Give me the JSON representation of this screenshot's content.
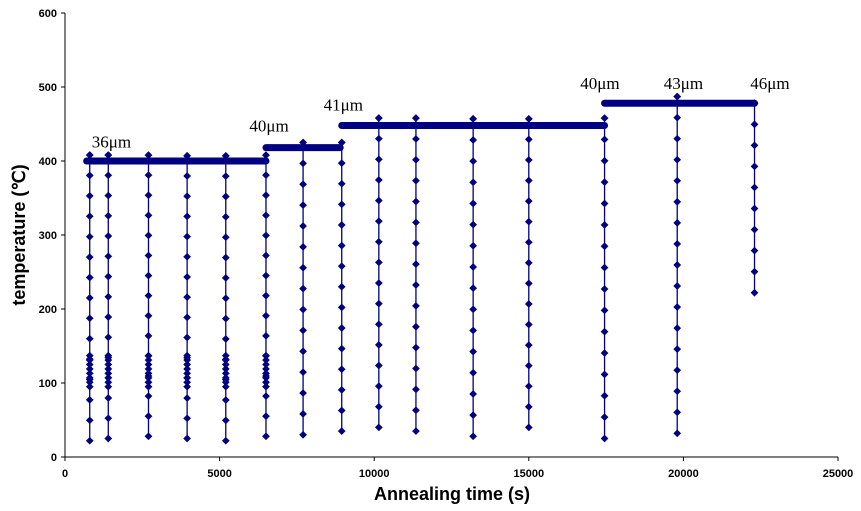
{
  "chart_data": {
    "type": "scatter",
    "title": "",
    "xlabel": "Annealing time (s)",
    "ylabel": "temperature (℃)",
    "xlim": [
      0,
      25000
    ],
    "ylim": [
      0,
      600
    ],
    "x_ticks": [
      0,
      5000,
      10000,
      15000,
      20000,
      25000
    ],
    "y_ticks": [
      0,
      100,
      200,
      300,
      400,
      500,
      600
    ],
    "grid": false,
    "legend": "none",
    "colors": {
      "series": "#000080",
      "axis": "#000000"
    },
    "series": [
      {
        "marker": "diamond",
        "line": true,
        "segments": [
          {
            "plateau": {
              "x_start": 700,
              "x_end": 6500,
              "y": 400
            },
            "cycles": [
              {
                "x": 800,
                "bottom": 22,
                "top": 408
              },
              {
                "x": 1400,
                "bottom": 25,
                "top": 408
              },
              {
                "x": 2700,
                "bottom": 28,
                "top": 408
              },
              {
                "x": 3950,
                "bottom": 25,
                "top": 407
              },
              {
                "x": 5200,
                "bottom": 22,
                "top": 407
              },
              {
                "x": 6500,
                "bottom": 28,
                "top": 408
              }
            ]
          },
          {
            "plateau": {
              "x_start": 6500,
              "x_end": 8900,
              "y": 418
            },
            "cycles": [
              {
                "x": 7700,
                "bottom": 30,
                "top": 425
              },
              {
                "x": 8950,
                "bottom": 35,
                "top": 425
              }
            ]
          },
          {
            "plateau": {
              "x_start": 8950,
              "x_end": 17450,
              "y": 448
            },
            "cycles": [
              {
                "x": 10150,
                "bottom": 40,
                "top": 458
              },
              {
                "x": 11350,
                "bottom": 35,
                "top": 458
              },
              {
                "x": 13200,
                "bottom": 28,
                "top": 457
              },
              {
                "x": 15000,
                "bottom": 40,
                "top": 457
              },
              {
                "x": 17450,
                "bottom": 25,
                "top": 458
              }
            ]
          },
          {
            "plateau": {
              "x_start": 17450,
              "x_end": 22300,
              "y": 478
            },
            "cycles": [
              {
                "x": 19800,
                "bottom": 32,
                "top": 487
              },
              {
                "x": 22300,
                "bottom": 222,
                "top": 478
              }
            ]
          }
        ]
      }
    ],
    "annotations": [
      {
        "text": "36μm",
        "x": 1500,
        "y": 418
      },
      {
        "text": "40μm",
        "x": 6600,
        "y": 440
      },
      {
        "text": "41μm",
        "x": 9000,
        "y": 468
      },
      {
        "text": "40μm",
        "x": 17300,
        "y": 497
      },
      {
        "text": "43μm",
        "x": 20000,
        "y": 497
      },
      {
        "text": "46μm",
        "x": 22800,
        "y": 497
      }
    ]
  }
}
